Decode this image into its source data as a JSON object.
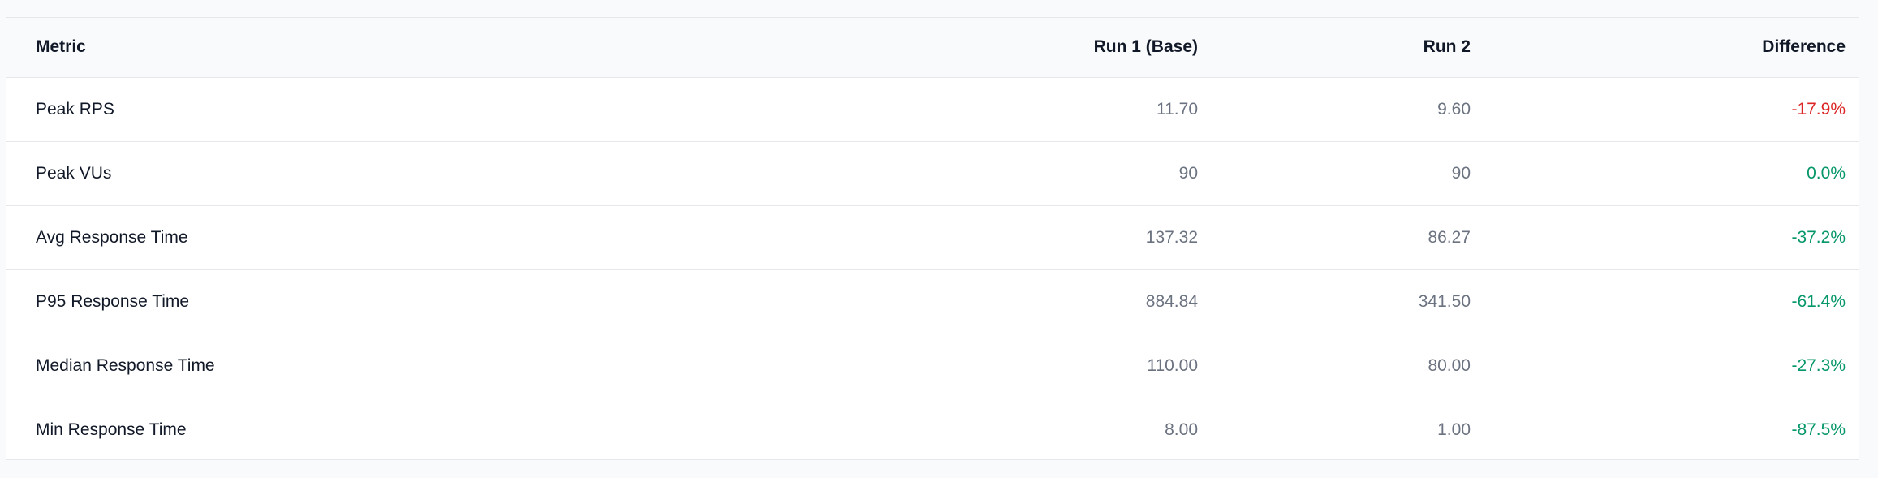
{
  "table": {
    "headers": {
      "metric": "Metric",
      "run1": "Run 1 (Base)",
      "run2": "Run 2",
      "difference": "Difference"
    },
    "rows": [
      {
        "metric": "Peak RPS",
        "run1": "11.70",
        "run2": "9.60",
        "difference": "-17.9%",
        "difference_status": "worse"
      },
      {
        "metric": "Peak VUs",
        "run1": "90",
        "run2": "90",
        "difference": "0.0%",
        "difference_status": "better"
      },
      {
        "metric": "Avg Response Time",
        "run1": "137.32",
        "run2": "86.27",
        "difference": "-37.2%",
        "difference_status": "better"
      },
      {
        "metric": "P95 Response Time",
        "run1": "884.84",
        "run2": "341.50",
        "difference": "-61.4%",
        "difference_status": "better"
      },
      {
        "metric": "Median Response Time",
        "run1": "110.00",
        "run2": "80.00",
        "difference": "-27.3%",
        "difference_status": "better"
      },
      {
        "metric": "Min Response Time",
        "run1": "8.00",
        "run2": "1.00",
        "difference": "-87.5%",
        "difference_status": "better"
      }
    ]
  },
  "colors": {
    "worse": "#dc2626",
    "better": "#059669",
    "muted_text": "#6b7280",
    "header_bg": "#f9fafb",
    "border": "#e5e7eb"
  }
}
